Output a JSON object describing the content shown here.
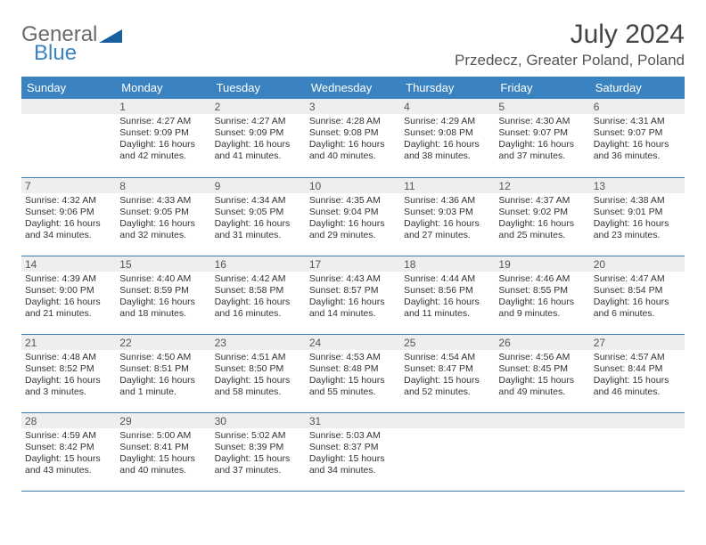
{
  "header": {
    "logo_general": "General",
    "logo_blue": "Blue",
    "logo_shape_color": "#1a5f9e",
    "month_title": "July 2024",
    "location": "Przedecz, Greater Poland, Poland"
  },
  "colors": {
    "header_row_bg": "#3b83c0",
    "header_row_text": "#ffffff",
    "day_num_bg": "#eeeeee",
    "cell_border": "#3b83c0",
    "body_text": "#333333"
  },
  "weekdays": [
    "Sunday",
    "Monday",
    "Tuesday",
    "Wednesday",
    "Thursday",
    "Friday",
    "Saturday"
  ],
  "weeks": [
    [
      null,
      {
        "n": "1",
        "sunrise": "Sunrise: 4:27 AM",
        "sunset": "Sunset: 9:09 PM",
        "dl1": "Daylight: 16 hours",
        "dl2": "and 42 minutes."
      },
      {
        "n": "2",
        "sunrise": "Sunrise: 4:27 AM",
        "sunset": "Sunset: 9:09 PM",
        "dl1": "Daylight: 16 hours",
        "dl2": "and 41 minutes."
      },
      {
        "n": "3",
        "sunrise": "Sunrise: 4:28 AM",
        "sunset": "Sunset: 9:08 PM",
        "dl1": "Daylight: 16 hours",
        "dl2": "and 40 minutes."
      },
      {
        "n": "4",
        "sunrise": "Sunrise: 4:29 AM",
        "sunset": "Sunset: 9:08 PM",
        "dl1": "Daylight: 16 hours",
        "dl2": "and 38 minutes."
      },
      {
        "n": "5",
        "sunrise": "Sunrise: 4:30 AM",
        "sunset": "Sunset: 9:07 PM",
        "dl1": "Daylight: 16 hours",
        "dl2": "and 37 minutes."
      },
      {
        "n": "6",
        "sunrise": "Sunrise: 4:31 AM",
        "sunset": "Sunset: 9:07 PM",
        "dl1": "Daylight: 16 hours",
        "dl2": "and 36 minutes."
      }
    ],
    [
      {
        "n": "7",
        "sunrise": "Sunrise: 4:32 AM",
        "sunset": "Sunset: 9:06 PM",
        "dl1": "Daylight: 16 hours",
        "dl2": "and 34 minutes."
      },
      {
        "n": "8",
        "sunrise": "Sunrise: 4:33 AM",
        "sunset": "Sunset: 9:05 PM",
        "dl1": "Daylight: 16 hours",
        "dl2": "and 32 minutes."
      },
      {
        "n": "9",
        "sunrise": "Sunrise: 4:34 AM",
        "sunset": "Sunset: 9:05 PM",
        "dl1": "Daylight: 16 hours",
        "dl2": "and 31 minutes."
      },
      {
        "n": "10",
        "sunrise": "Sunrise: 4:35 AM",
        "sunset": "Sunset: 9:04 PM",
        "dl1": "Daylight: 16 hours",
        "dl2": "and 29 minutes."
      },
      {
        "n": "11",
        "sunrise": "Sunrise: 4:36 AM",
        "sunset": "Sunset: 9:03 PM",
        "dl1": "Daylight: 16 hours",
        "dl2": "and 27 minutes."
      },
      {
        "n": "12",
        "sunrise": "Sunrise: 4:37 AM",
        "sunset": "Sunset: 9:02 PM",
        "dl1": "Daylight: 16 hours",
        "dl2": "and 25 minutes."
      },
      {
        "n": "13",
        "sunrise": "Sunrise: 4:38 AM",
        "sunset": "Sunset: 9:01 PM",
        "dl1": "Daylight: 16 hours",
        "dl2": "and 23 minutes."
      }
    ],
    [
      {
        "n": "14",
        "sunrise": "Sunrise: 4:39 AM",
        "sunset": "Sunset: 9:00 PM",
        "dl1": "Daylight: 16 hours",
        "dl2": "and 21 minutes."
      },
      {
        "n": "15",
        "sunrise": "Sunrise: 4:40 AM",
        "sunset": "Sunset: 8:59 PM",
        "dl1": "Daylight: 16 hours",
        "dl2": "and 18 minutes."
      },
      {
        "n": "16",
        "sunrise": "Sunrise: 4:42 AM",
        "sunset": "Sunset: 8:58 PM",
        "dl1": "Daylight: 16 hours",
        "dl2": "and 16 minutes."
      },
      {
        "n": "17",
        "sunrise": "Sunrise: 4:43 AM",
        "sunset": "Sunset: 8:57 PM",
        "dl1": "Daylight: 16 hours",
        "dl2": "and 14 minutes."
      },
      {
        "n": "18",
        "sunrise": "Sunrise: 4:44 AM",
        "sunset": "Sunset: 8:56 PM",
        "dl1": "Daylight: 16 hours",
        "dl2": "and 11 minutes."
      },
      {
        "n": "19",
        "sunrise": "Sunrise: 4:46 AM",
        "sunset": "Sunset: 8:55 PM",
        "dl1": "Daylight: 16 hours",
        "dl2": "and 9 minutes."
      },
      {
        "n": "20",
        "sunrise": "Sunrise: 4:47 AM",
        "sunset": "Sunset: 8:54 PM",
        "dl1": "Daylight: 16 hours",
        "dl2": "and 6 minutes."
      }
    ],
    [
      {
        "n": "21",
        "sunrise": "Sunrise: 4:48 AM",
        "sunset": "Sunset: 8:52 PM",
        "dl1": "Daylight: 16 hours",
        "dl2": "and 3 minutes."
      },
      {
        "n": "22",
        "sunrise": "Sunrise: 4:50 AM",
        "sunset": "Sunset: 8:51 PM",
        "dl1": "Daylight: 16 hours",
        "dl2": "and 1 minute."
      },
      {
        "n": "23",
        "sunrise": "Sunrise: 4:51 AM",
        "sunset": "Sunset: 8:50 PM",
        "dl1": "Daylight: 15 hours",
        "dl2": "and 58 minutes."
      },
      {
        "n": "24",
        "sunrise": "Sunrise: 4:53 AM",
        "sunset": "Sunset: 8:48 PM",
        "dl1": "Daylight: 15 hours",
        "dl2": "and 55 minutes."
      },
      {
        "n": "25",
        "sunrise": "Sunrise: 4:54 AM",
        "sunset": "Sunset: 8:47 PM",
        "dl1": "Daylight: 15 hours",
        "dl2": "and 52 minutes."
      },
      {
        "n": "26",
        "sunrise": "Sunrise: 4:56 AM",
        "sunset": "Sunset: 8:45 PM",
        "dl1": "Daylight: 15 hours",
        "dl2": "and 49 minutes."
      },
      {
        "n": "27",
        "sunrise": "Sunrise: 4:57 AM",
        "sunset": "Sunset: 8:44 PM",
        "dl1": "Daylight: 15 hours",
        "dl2": "and 46 minutes."
      }
    ],
    [
      {
        "n": "28",
        "sunrise": "Sunrise: 4:59 AM",
        "sunset": "Sunset: 8:42 PM",
        "dl1": "Daylight: 15 hours",
        "dl2": "and 43 minutes."
      },
      {
        "n": "29",
        "sunrise": "Sunrise: 5:00 AM",
        "sunset": "Sunset: 8:41 PM",
        "dl1": "Daylight: 15 hours",
        "dl2": "and 40 minutes."
      },
      {
        "n": "30",
        "sunrise": "Sunrise: 5:02 AM",
        "sunset": "Sunset: 8:39 PM",
        "dl1": "Daylight: 15 hours",
        "dl2": "and 37 minutes."
      },
      {
        "n": "31",
        "sunrise": "Sunrise: 5:03 AM",
        "sunset": "Sunset: 8:37 PM",
        "dl1": "Daylight: 15 hours",
        "dl2": "and 34 minutes."
      },
      null,
      null,
      null
    ]
  ]
}
